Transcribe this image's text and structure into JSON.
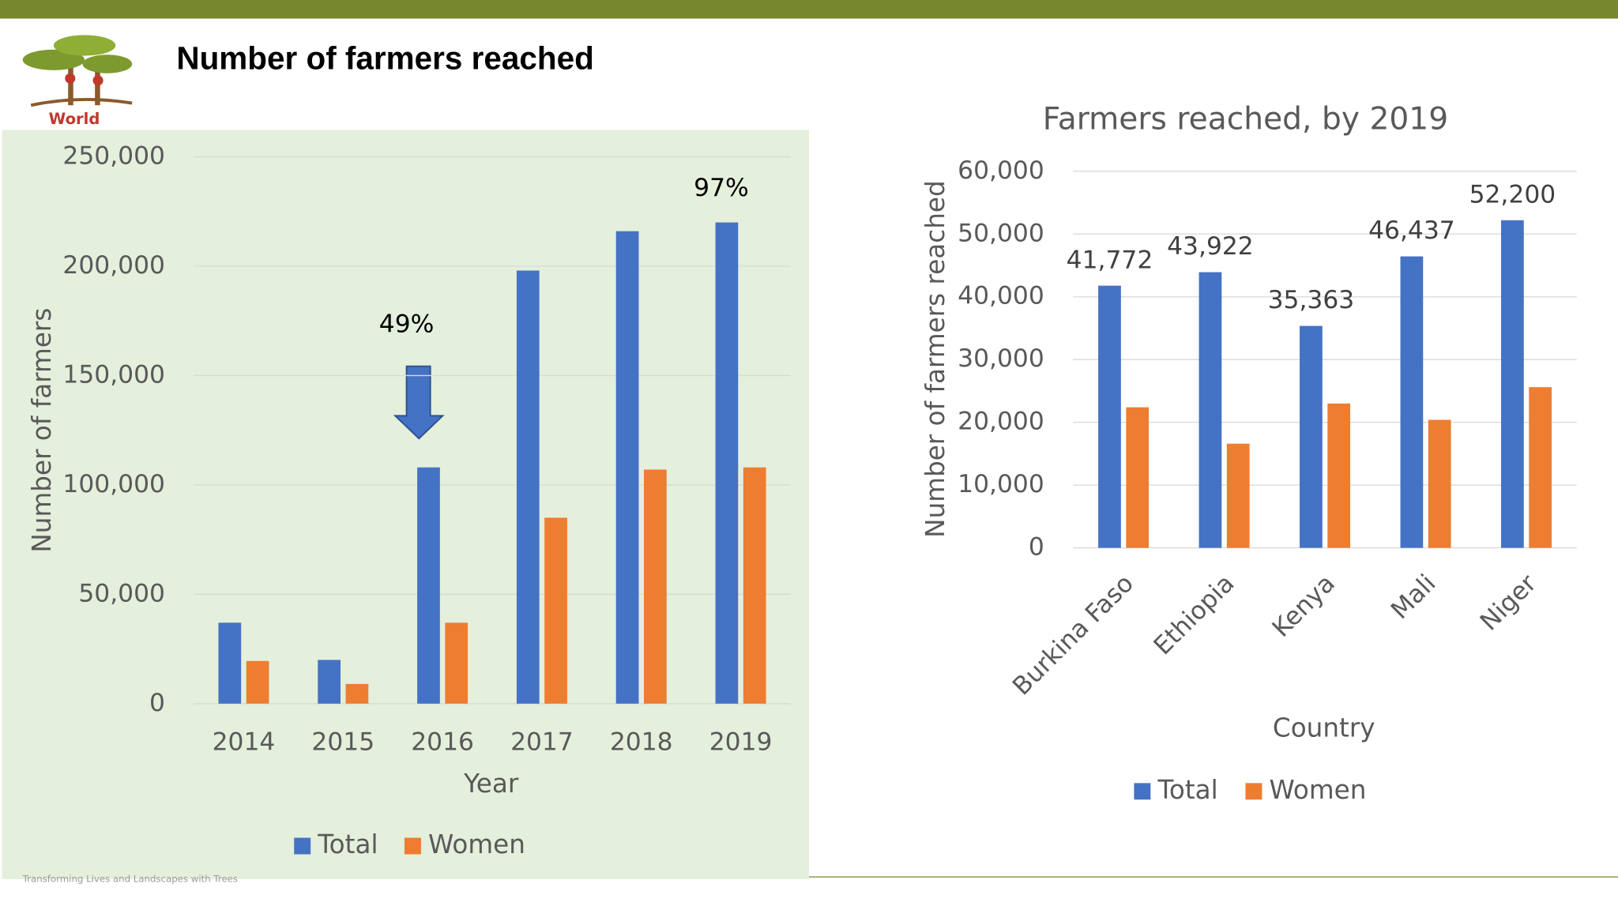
{
  "slide_title": "Number of farmers reached",
  "logo_text": "World",
  "footer": "Transforming Lives and Landscapes with Trees",
  "chart_data": [
    {
      "type": "bar",
      "x_label": "Year",
      "y_label": "Number of farmers",
      "categories": [
        "2014",
        "2015",
        "2016",
        "2017",
        "2018",
        "2019"
      ],
      "series": [
        {
          "name": "Total",
          "color": "#4472c4",
          "values": [
            37000,
            20000,
            108000,
            198000,
            216000,
            220000
          ]
        },
        {
          "name": "Women",
          "color": "#ed7d31",
          "values": [
            19500,
            9000,
            37000,
            85000,
            107000,
            108000
          ]
        }
      ],
      "annotations": [
        "49%",
        "97%"
      ],
      "ylim": [
        0,
        250000
      ],
      "yticks": [
        0,
        {
          "value": 50000,
          "label": "50,000"
        },
        {
          "value": 100000,
          "label": "100,000"
        },
        {
          "value": 150000,
          "label": "150,000"
        },
        {
          "value": 200000,
          "label": "200,000"
        },
        {
          "value": 250000,
          "label": "250,000"
        }
      ],
      "grid": true,
      "legend": "bottom"
    },
    {
      "type": "bar",
      "title": "Farmers reached, by 2019",
      "x_label": "Country",
      "y_label": "Number of farmers reached",
      "categories": [
        "Burkina Faso",
        "Ethiopia",
        "Kenya",
        "Mali",
        "Niger"
      ],
      "series": [
        {
          "name": "Total",
          "color": "#4472c4",
          "values": [
            41772,
            43922,
            35363,
            46437,
            52200
          ],
          "value_labels": [
            "41,772",
            "43,922",
            "35,363",
            "46,437",
            "52,200"
          ]
        },
        {
          "name": "Women",
          "color": "#ed7d31",
          "values": [
            22400,
            16600,
            23000,
            20400,
            25600
          ]
        }
      ],
      "ylim": [
        0,
        60000
      ],
      "yticks": [
        0,
        {
          "value": 10000,
          "label": "10,000"
        },
        {
          "value": 20000,
          "label": "20,000"
        },
        {
          "value": 30000,
          "label": "30,000"
        },
        {
          "value": 40000,
          "label": "40,000"
        },
        {
          "value": 50000,
          "label": "50,000"
        },
        {
          "value": 60000,
          "label": "60,000"
        }
      ],
      "grid": true,
      "legend": "bottom"
    }
  ]
}
